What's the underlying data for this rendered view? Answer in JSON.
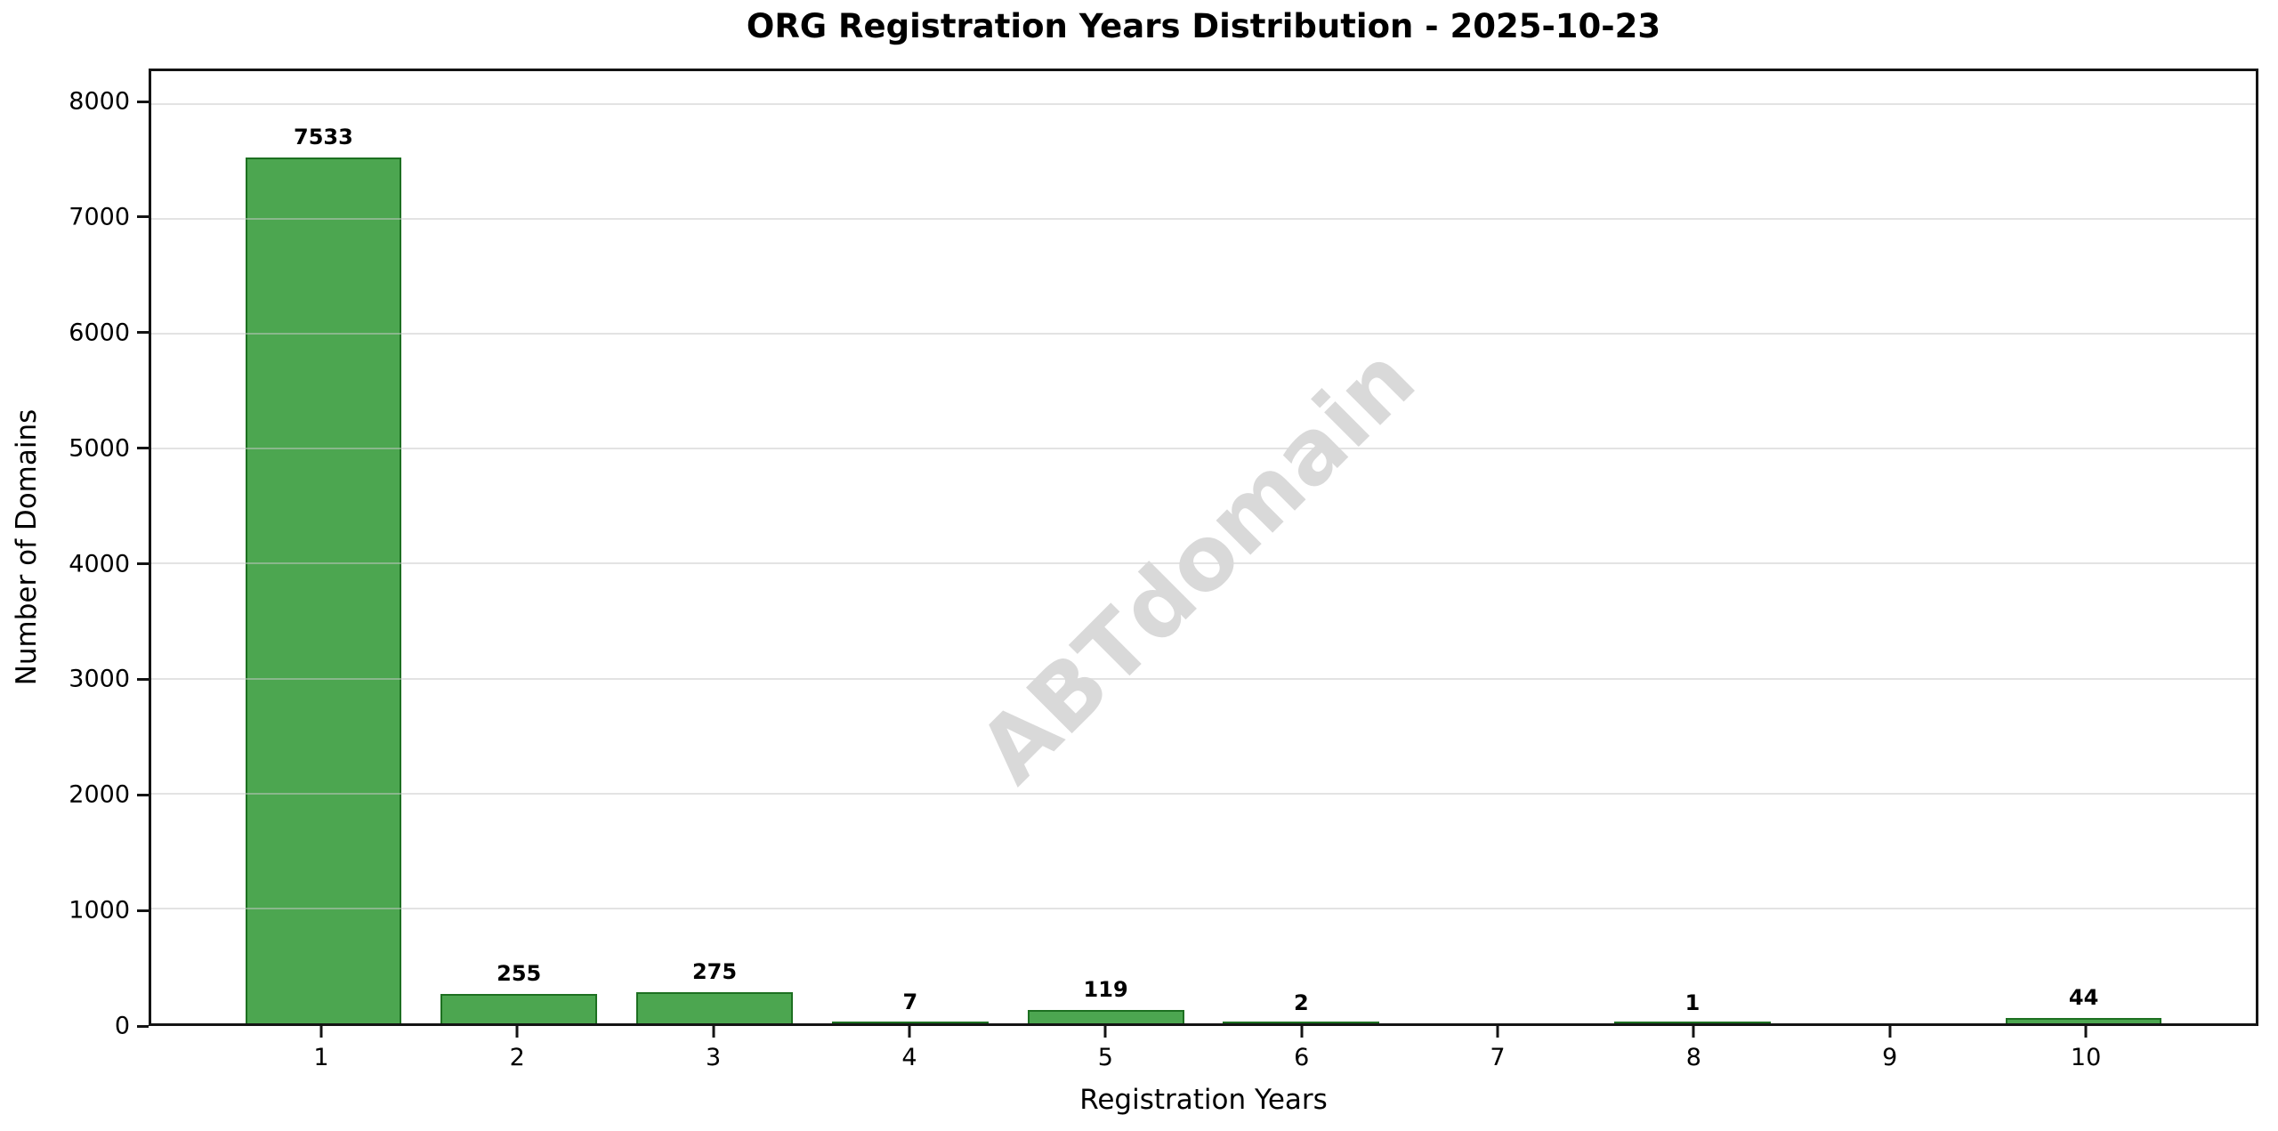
{
  "title": "ORG Registration Years Distribution - 2025-10-23",
  "watermark_text": "ABTdomain",
  "chart_data": {
    "type": "bar",
    "title": "ORG Registration Years Distribution - 2025-10-23",
    "categories": [
      "1",
      "2",
      "3",
      "4",
      "5",
      "6",
      "7",
      "8",
      "9",
      "10"
    ],
    "values": [
      7533,
      255,
      275,
      7,
      119,
      2,
      0,
      1,
      0,
      44
    ],
    "bar_value_labels": [
      "7533",
      "255",
      "275",
      "7",
      "119",
      "2",
      "",
      "1",
      "",
      "44"
    ],
    "xlabel": "Registration Years",
    "ylabel": "Number of Domains",
    "yticks": [
      0,
      1000,
      2000,
      3000,
      4000,
      5000,
      6000,
      7000,
      8000
    ],
    "ytick_labels": [
      "0",
      "1000",
      "2000",
      "3000",
      "4000",
      "5000",
      "6000",
      "7000",
      "8000"
    ],
    "ylim": [
      0,
      8286
    ],
    "xlim": [
      0.12,
      10.88
    ],
    "bar_width_units": 0.8,
    "grid": true,
    "grid_over_bars": true,
    "legend": "none",
    "bar_color": "#4CA650",
    "bar_edge_color": "#1d7021",
    "grid_color": "#e4e4e4",
    "watermark": "ABTdomain",
    "watermark_color": "#d9d9d9",
    "watermark_rotation_deg": -45
  }
}
